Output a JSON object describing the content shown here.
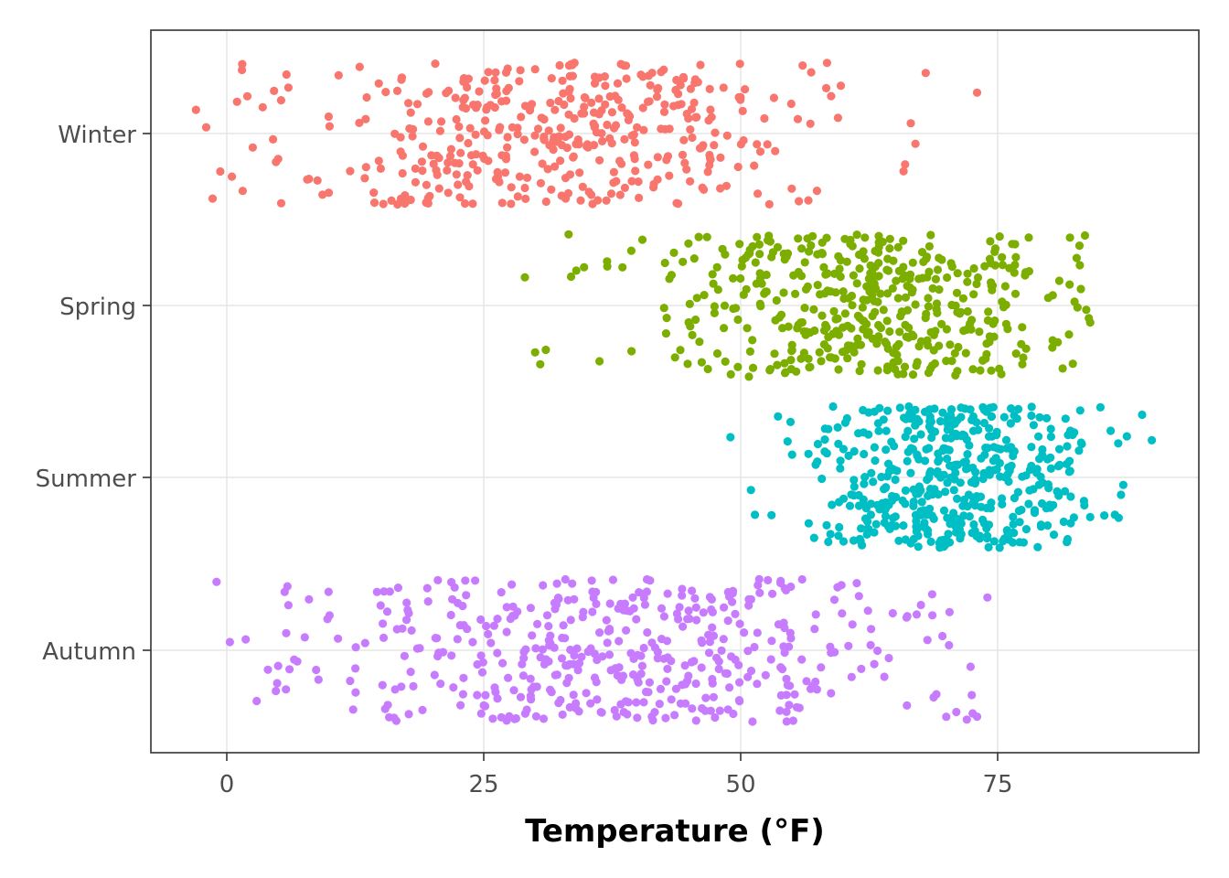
{
  "chart_data": {
    "type": "scatter",
    "title": "",
    "xlabel": "Temperature (°F)",
    "ylabel": "",
    "xlim": [
      -7.5,
      94
    ],
    "x_ticks": [
      0,
      25,
      50,
      75
    ],
    "x_tick_labels": [
      "0",
      "25",
      "50",
      "75"
    ],
    "categories": [
      "Winter",
      "Spring",
      "Summer",
      "Autumn"
    ],
    "jitter": "vertical jitter within each season row",
    "grid": true,
    "legend": "none",
    "series": [
      {
        "category": "Winter",
        "color": "#F8766D",
        "x_range": [
          -3,
          73
        ],
        "center": 33,
        "spread": 13,
        "count": 430,
        "x_values_notable": [
          -3,
          -2,
          0.5,
          1,
          1.5,
          2,
          3.5,
          4.5,
          5,
          6,
          8,
          10,
          12,
          66,
          67,
          68,
          73
        ]
      },
      {
        "category": "Spring",
        "color": "#7CAE00",
        "x_range": [
          29,
          84
        ],
        "center": 63,
        "spread": 11,
        "count": 470,
        "x_values_notable": [
          29,
          30,
          30.5,
          33.5,
          34,
          37,
          38.5,
          81,
          82,
          83,
          84
        ]
      },
      {
        "category": "Summer",
        "color": "#00BFC4",
        "x_range": [
          49,
          90
        ],
        "center": 71,
        "spread": 7,
        "count": 480,
        "x_values_notable": [
          49,
          51,
          53,
          55,
          85,
          86,
          87,
          90
        ]
      },
      {
        "category": "Autumn",
        "color": "#C77CFF",
        "x_range": [
          -1,
          74
        ],
        "center": 39,
        "spread": 15,
        "count": 470,
        "x_values_notable": [
          -1,
          4,
          5,
          6,
          8,
          10,
          12,
          70,
          72,
          73,
          74
        ]
      }
    ]
  }
}
